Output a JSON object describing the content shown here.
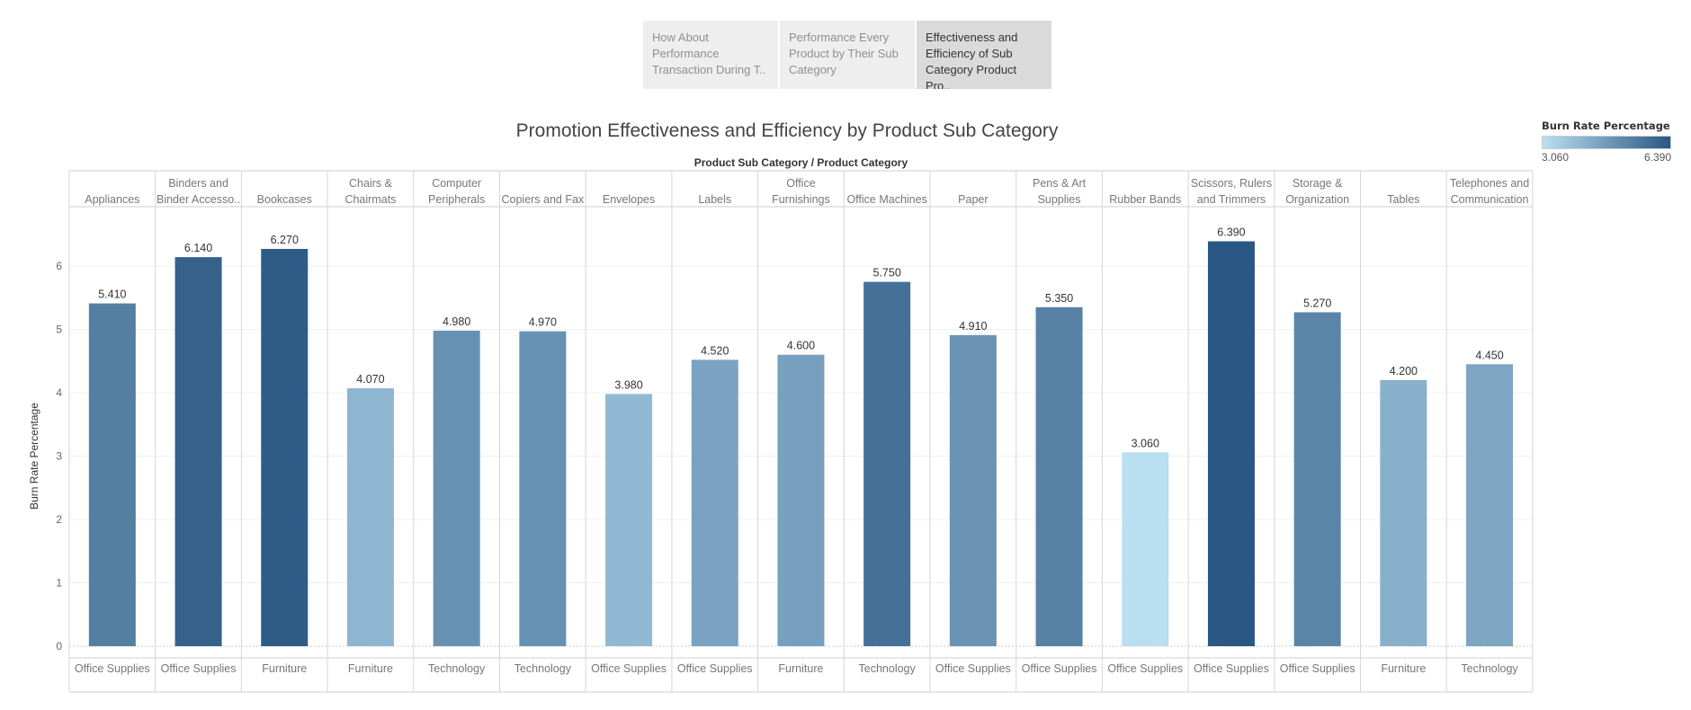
{
  "tabs": [
    {
      "label": "How About Performance Transaction During T..",
      "active": false
    },
    {
      "label": "Performance Every Product by Their Sub Category",
      "active": false
    },
    {
      "label": "Effectiveness and Efficiency of Sub Category Product Pro..",
      "active": true
    }
  ],
  "legend": {
    "title": "Burn Rate Percentage",
    "min_label": "3.060",
    "max_label": "6.390",
    "color_low": "#b9dff1",
    "color_high": "#2a5783"
  },
  "chart_data": {
    "type": "bar",
    "title": "Promotion Effectiveness and Efficiency by Product Sub Category",
    "header": "Product Sub Category  /  Product Category",
    "ylabel": "Burn Rate Percentage",
    "ylim": [
      0,
      7
    ],
    "yticks": [
      0,
      1,
      2,
      3,
      4,
      5,
      6
    ],
    "categories": [
      {
        "sub": [
          "Appliances"
        ],
        "category": "Office Supplies",
        "value": 5.41,
        "label": "5.410"
      },
      {
        "sub": [
          "Binders and",
          "Binder Accesso.."
        ],
        "category": "Office Supplies",
        "value": 6.14,
        "label": "6.140"
      },
      {
        "sub": [
          "Bookcases"
        ],
        "category": "Furniture",
        "value": 6.27,
        "label": "6.270"
      },
      {
        "sub": [
          "Chairs &",
          "Chairmats"
        ],
        "category": "Furniture",
        "value": 4.07,
        "label": "4.070"
      },
      {
        "sub": [
          "Computer",
          "Peripherals"
        ],
        "category": "Technology",
        "value": 4.98,
        "label": "4.980"
      },
      {
        "sub": [
          "Copiers and Fax"
        ],
        "category": "Technology",
        "value": 4.97,
        "label": "4.970"
      },
      {
        "sub": [
          "Envelopes"
        ],
        "category": "Office Supplies",
        "value": 3.98,
        "label": "3.980"
      },
      {
        "sub": [
          "Labels"
        ],
        "category": "Office Supplies",
        "value": 4.52,
        "label": "4.520"
      },
      {
        "sub": [
          "Office",
          "Furnishings"
        ],
        "category": "Furniture",
        "value": 4.6,
        "label": "4.600"
      },
      {
        "sub": [
          "Office Machines"
        ],
        "category": "Technology",
        "value": 5.75,
        "label": "5.750"
      },
      {
        "sub": [
          "Paper"
        ],
        "category": "Office Supplies",
        "value": 4.91,
        "label": "4.910"
      },
      {
        "sub": [
          "Pens & Art",
          "Supplies"
        ],
        "category": "Office Supplies",
        "value": 5.35,
        "label": "5.350"
      },
      {
        "sub": [
          "Rubber Bands"
        ],
        "category": "Office Supplies",
        "value": 3.06,
        "label": "3.060"
      },
      {
        "sub": [
          "Scissors, Rulers",
          "and Trimmers"
        ],
        "category": "Office Supplies",
        "value": 6.39,
        "label": "6.390"
      },
      {
        "sub": [
          "Storage &",
          "Organization"
        ],
        "category": "Office Supplies",
        "value": 5.27,
        "label": "5.270"
      },
      {
        "sub": [
          "Tables"
        ],
        "category": "Furniture",
        "value": 4.2,
        "label": "4.200"
      },
      {
        "sub": [
          "Telephones and",
          "Communication"
        ],
        "category": "Technology",
        "value": 4.45,
        "label": "4.450"
      }
    ]
  }
}
